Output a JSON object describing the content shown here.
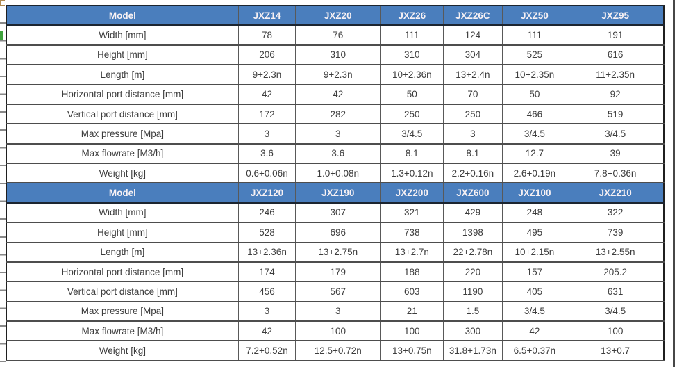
{
  "colors": {
    "header_bg": "#4a7ebd",
    "header_text": "#f7f1f4",
    "cell_text": "#3d3d3d",
    "h_gridline": "#4d4d4d",
    "v_gridline": "#595959",
    "green_mark": "#3fa33c",
    "tan_mark": "#b08a50"
  },
  "table": {
    "header_label": "Model",
    "sections": [
      {
        "models": [
          "JXZ14",
          "JXZ20",
          "JXZ26",
          "JXZ26C",
          "JXZ50",
          "JXZ95"
        ],
        "rows": [
          {
            "label": "Width [mm]",
            "values": [
              "78",
              "76",
              "111",
              "124",
              "111",
              "191"
            ]
          },
          {
            "label": "Height [mm]",
            "values": [
              "206",
              "310",
              "310",
              "304",
              "525",
              "616"
            ]
          },
          {
            "label": "Length [m]",
            "values": [
              "9+2.3n",
              "9+2.3n",
              "10+2.36n",
              "13+2.4n",
              "10+2.35n",
              "11+2.35n"
            ]
          },
          {
            "label": "Horizontal port distance [mm]",
            "values": [
              "42",
              "42",
              "50",
              "70",
              "50",
              "92"
            ]
          },
          {
            "label": "Vertical port distance  [mm]",
            "values": [
              "172",
              "282",
              "250",
              "250",
              "466",
              "519"
            ]
          },
          {
            "label": "Max pressure [Mpa]",
            "values": [
              "3",
              "3",
              "3/4.5",
              "3",
              "3/4.5",
              "3/4.5"
            ]
          },
          {
            "label": "Max flowrate  [M3/h]",
            "values": [
              "3.6",
              "3.6",
              "8.1",
              "8.1",
              "12.7",
              "39"
            ]
          },
          {
            "label": "Weight [kg]",
            "values": [
              "0.6+0.06n",
              "1.0+0.08n",
              "1.3+0.12n",
              "2.2+0.16n",
              "2.6+0.19n",
              "7.8+0.36n"
            ]
          }
        ]
      },
      {
        "models": [
          "JXZ120",
          "JXZ190",
          "JXZ200",
          "JXZ600",
          "JXZ100",
          "JXZ210"
        ],
        "rows": [
          {
            "label": "Width [mm]",
            "values": [
              "246",
              "307",
              "321",
              "429",
              "248",
              "322"
            ]
          },
          {
            "label": "Height [mm]",
            "values": [
              "528",
              "696",
              "738",
              "1398",
              "495",
              "739"
            ]
          },
          {
            "label": "Length [m]",
            "values": [
              "13+2.36n",
              "13+2.75n",
              "13+2.7n",
              "22+2.78n",
              "10+2.15n",
              "13+2.55n"
            ]
          },
          {
            "label": "Horizontal port distance [mm]",
            "values": [
              "174",
              "179",
              "188",
              "220",
              "157",
              "205.2"
            ]
          },
          {
            "label": "Vertical port distance  [mm]",
            "values": [
              "456",
              "567",
              "603",
              "1190",
              "405",
              "631"
            ]
          },
          {
            "label": "Max pressure [Mpa]",
            "values": [
              "3",
              "3",
              "21",
              "1.5",
              "3/4.5",
              "3/4.5"
            ]
          },
          {
            "label": "Max flowrate  [M3/h]",
            "values": [
              "42",
              "100",
              "100",
              "300",
              "42",
              "100"
            ]
          },
          {
            "label": "Weight [kg]",
            "values": [
              "7.2+0.52n",
              "12.5+0.72n",
              "13+0.75n",
              "31.8+1.73n",
              "6.5+0.37n",
              "13+0.7"
            ]
          }
        ]
      }
    ]
  }
}
